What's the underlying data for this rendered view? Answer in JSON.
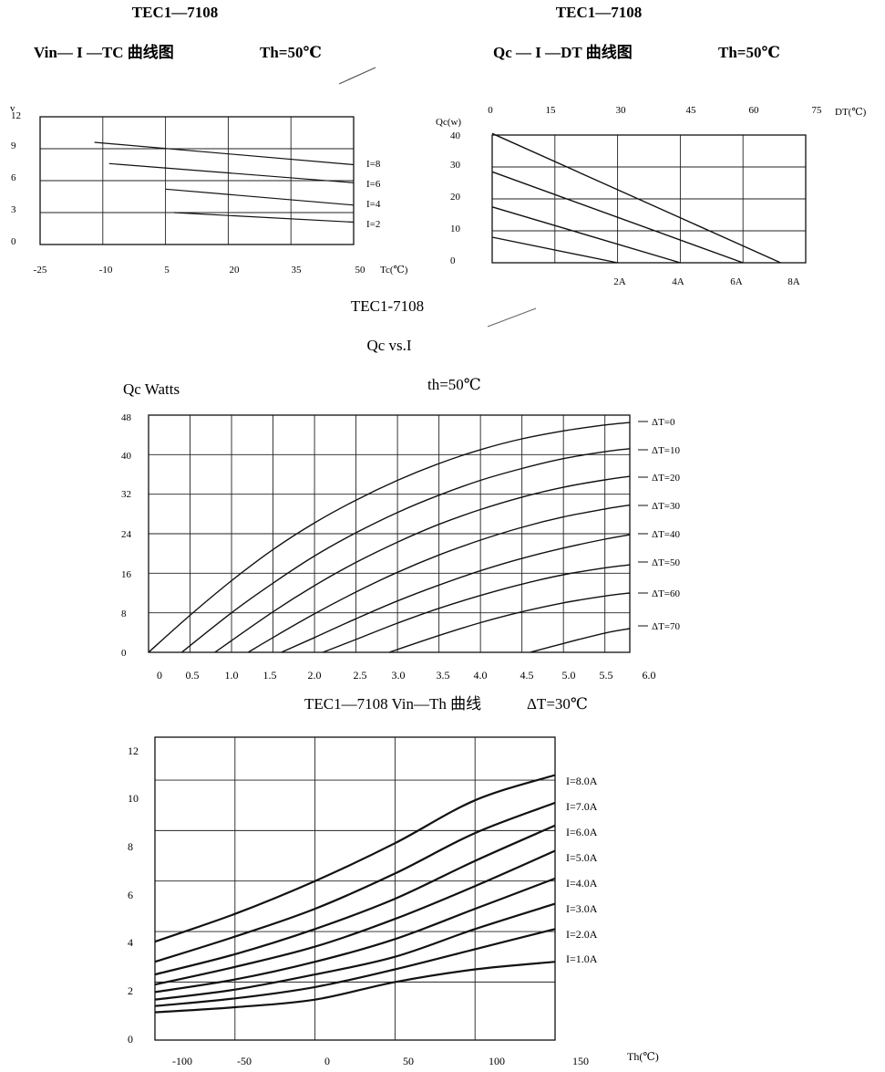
{
  "chart_data": [
    {
      "id": "vin",
      "type": "line",
      "heading": "TEC1—7108",
      "title": "Vin— I —TC 曲线图",
      "condition": "Th=50℃",
      "ylabel": "v",
      "xlabel": "Tc(℃)",
      "xticks": [
        "-25",
        "-10",
        "5",
        "20",
        "35",
        "50"
      ],
      "yticks": [
        "0",
        "3",
        "6",
        "9",
        "12"
      ],
      "xlim": [
        -25,
        50
      ],
      "ylim": [
        0,
        12
      ],
      "grid": true,
      "series": [
        {
          "name": "I=8",
          "x": [
            -12,
            50
          ],
          "y": [
            9.6,
            7.5
          ]
        },
        {
          "name": "I=6",
          "x": [
            -8.5,
            50
          ],
          "y": [
            7.6,
            5.8
          ]
        },
        {
          "name": "I=4",
          "x": [
            5,
            50
          ],
          "y": [
            5.2,
            3.7
          ]
        },
        {
          "name": "I=2",
          "x": [
            7,
            50
          ],
          "y": [
            3.0,
            2.1
          ]
        }
      ]
    },
    {
      "id": "qcdt",
      "type": "line",
      "heading": "TEC1—7108",
      "title": "Qc — I —DT 曲线图",
      "condition": "Th=50℃",
      "ylabel": "Qc(w)",
      "xlabel": "DT(℃)",
      "xticks": [
        "0",
        "15",
        "30",
        "45",
        "60",
        "75"
      ],
      "yticks": [
        "0",
        "10",
        "20",
        "30",
        "40"
      ],
      "xlim": [
        0,
        75
      ],
      "ylim": [
        0,
        40
      ],
      "grid": true,
      "series": [
        {
          "name": "2A",
          "x": [
            0,
            30
          ],
          "y": [
            8,
            0
          ]
        },
        {
          "name": "4A",
          "x": [
            0,
            45
          ],
          "y": [
            17.5,
            0
          ]
        },
        {
          "name": "6A",
          "x": [
            0,
            60
          ],
          "y": [
            28.5,
            0
          ]
        },
        {
          "name": "8A",
          "x": [
            0,
            69
          ],
          "y": [
            40.5,
            0
          ]
        }
      ]
    },
    {
      "id": "qci",
      "type": "line",
      "heading": "TEC1-7108",
      "title": "Qc vs.I",
      "condition": "th=50℃",
      "ylabel": "Qc Watts",
      "xlabel": "",
      "xticks": [
        "0",
        "0.5",
        "1.0",
        "1.5",
        "2.0",
        "2.5",
        "3.0",
        "3.5",
        "4.0",
        "4.5",
        "5.0",
        "5.5",
        "6.0"
      ],
      "yticks": [
        "0",
        "8",
        "16",
        "24",
        "32",
        "40",
        "48"
      ],
      "xlim": [
        0,
        5.8
      ],
      "ylim": [
        0,
        48
      ],
      "grid": true,
      "series": [
        {
          "name": "ΔT=0",
          "x": [
            0,
            0.5,
            1.0,
            1.5,
            2.0,
            2.5,
            3.0,
            3.5,
            4.0,
            4.5,
            5.0,
            5.5,
            5.8
          ],
          "y": [
            0,
            7.5,
            14.5,
            20.8,
            26.2,
            30.8,
            34.8,
            38.2,
            41.0,
            43.2,
            44.8,
            46.0,
            46.5
          ]
        },
        {
          "name": "ΔT=10",
          "x": [
            0.4,
            1.0,
            1.5,
            2.0,
            2.5,
            3.0,
            3.5,
            4.0,
            4.5,
            5.0,
            5.5,
            5.8
          ],
          "y": [
            0,
            8.0,
            14.0,
            19.5,
            24.2,
            28.3,
            31.8,
            34.8,
            37.2,
            39.2,
            40.6,
            41.2
          ]
        },
        {
          "name": "ΔT=20",
          "x": [
            0.8,
            1.5,
            2.0,
            2.5,
            3.0,
            3.5,
            4.0,
            4.5,
            5.0,
            5.5,
            5.8
          ],
          "y": [
            0,
            8.2,
            13.5,
            18.2,
            22.3,
            25.9,
            28.9,
            31.4,
            33.4,
            34.9,
            35.6
          ]
        },
        {
          "name": "ΔT=30",
          "x": [
            1.2,
            1.5,
            2.0,
            2.5,
            3.0,
            3.5,
            4.0,
            4.5,
            5.0,
            5.5,
            5.8
          ],
          "y": [
            0,
            3.0,
            7.8,
            12.2,
            16.2,
            19.7,
            22.7,
            25.3,
            27.4,
            29.0,
            29.8
          ]
        },
        {
          "name": "ΔT=40",
          "x": [
            1.6,
            2.0,
            2.5,
            3.0,
            3.5,
            4.0,
            4.5,
            5.0,
            5.5,
            5.8
          ],
          "y": [
            0,
            3.0,
            6.8,
            10.4,
            13.6,
            16.5,
            19.0,
            21.1,
            22.9,
            23.8
          ]
        },
        {
          "name": "ΔT=50",
          "x": [
            2.1,
            2.5,
            3.0,
            3.5,
            4.0,
            4.5,
            5.0,
            5.5,
            5.8
          ],
          "y": [
            0,
            2.6,
            5.9,
            8.9,
            11.5,
            13.8,
            15.7,
            17.1,
            17.7
          ]
        },
        {
          "name": "ΔT=60",
          "x": [
            2.9,
            3.5,
            4.0,
            4.5,
            5.0,
            5.5,
            5.8
          ],
          "y": [
            0,
            3.4,
            6.0,
            8.2,
            10.0,
            11.4,
            12.0
          ]
        },
        {
          "name": "ΔT=70",
          "x": [
            4.6,
            5.0,
            5.5,
            5.8
          ],
          "y": [
            0,
            1.8,
            3.9,
            4.8
          ]
        }
      ]
    },
    {
      "id": "vinth",
      "type": "line",
      "title": "TEC1—7108 Vin—Th 曲线",
      "condition": "ΔT=30℃",
      "ylabel": "",
      "xlabel": "Th(℃)",
      "xticks": [
        "-100",
        "-50",
        "0",
        "50",
        "100",
        "150"
      ],
      "yticks": [
        "0",
        "2",
        "4",
        "6",
        "8",
        "10",
        "12"
      ],
      "xlim": [
        -100,
        150
      ],
      "ylim": [
        0,
        12
      ],
      "grid": true,
      "series": [
        {
          "name": "I=8.0A",
          "x": [
            -100,
            -50,
            0,
            50,
            100,
            150
          ],
          "y": [
            3.9,
            5.0,
            6.3,
            7.8,
            9.5,
            10.5
          ]
        },
        {
          "name": "I=7.0A",
          "x": [
            -100,
            -50,
            0,
            50,
            100,
            150
          ],
          "y": [
            3.1,
            4.1,
            5.2,
            6.6,
            8.2,
            9.4
          ]
        },
        {
          "name": "I=6.0A",
          "x": [
            -100,
            -50,
            0,
            50,
            100,
            150
          ],
          "y": [
            2.6,
            3.4,
            4.4,
            5.6,
            7.1,
            8.5
          ]
        },
        {
          "name": "I=5.0A",
          "x": [
            -100,
            -50,
            0,
            50,
            100,
            150
          ],
          "y": [
            2.2,
            2.9,
            3.7,
            4.8,
            6.1,
            7.5
          ]
        },
        {
          "name": "I=4.0A",
          "x": [
            -100,
            -50,
            0,
            50,
            100,
            150
          ],
          "y": [
            1.9,
            2.4,
            3.1,
            4.0,
            5.2,
            6.4
          ]
        },
        {
          "name": "I=3.0A",
          "x": [
            -100,
            -50,
            0,
            50,
            100,
            150
          ],
          "y": [
            1.6,
            2.0,
            2.6,
            3.3,
            4.4,
            5.4
          ]
        },
        {
          "name": "I=2.0A",
          "x": [
            -100,
            -50,
            0,
            50,
            100,
            150
          ],
          "y": [
            1.35,
            1.65,
            2.1,
            2.8,
            3.6,
            4.4
          ]
        },
        {
          "name": "I=1.0A",
          "x": [
            -100,
            -50,
            0,
            50,
            100,
            150
          ],
          "y": [
            1.1,
            1.3,
            1.6,
            2.3,
            2.8,
            3.1
          ]
        }
      ]
    }
  ]
}
